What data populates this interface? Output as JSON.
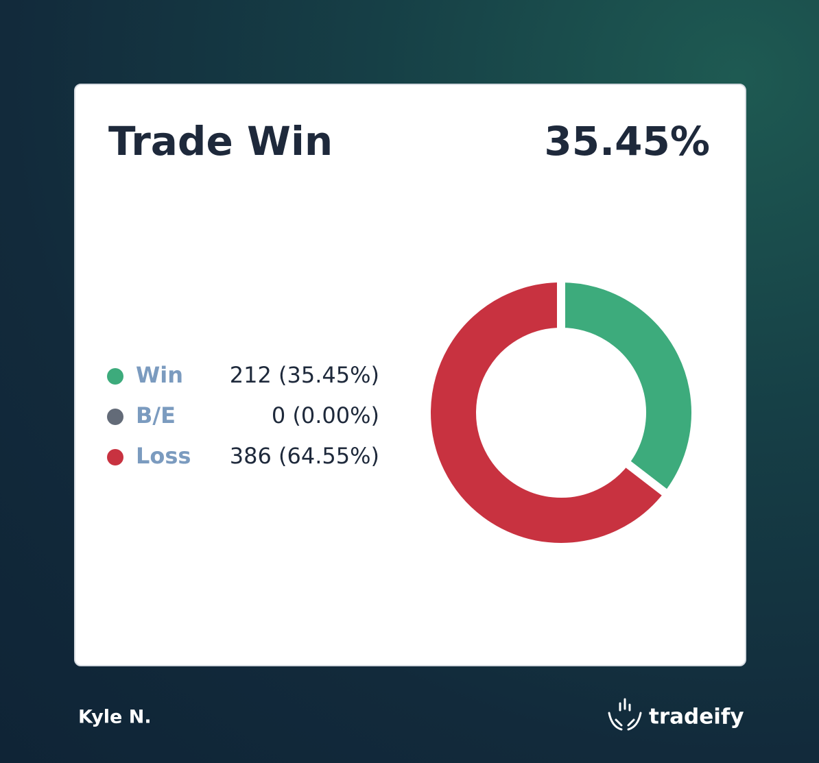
{
  "card": {
    "title": "Trade Win",
    "headline": "35.45%"
  },
  "chart_data": {
    "type": "pie",
    "hole": true,
    "categories": [
      "Win",
      "B/E",
      "Loss"
    ],
    "values": [
      212,
      0,
      386
    ],
    "value_labels": [
      "212 (35.45%)",
      "0 (0.00%)",
      "386 (64.55%)"
    ],
    "colors": [
      "#3dab7c",
      "#636b78",
      "#c83240"
    ]
  },
  "footer": {
    "user": "Kyle N.",
    "brand": "tradeify"
  }
}
